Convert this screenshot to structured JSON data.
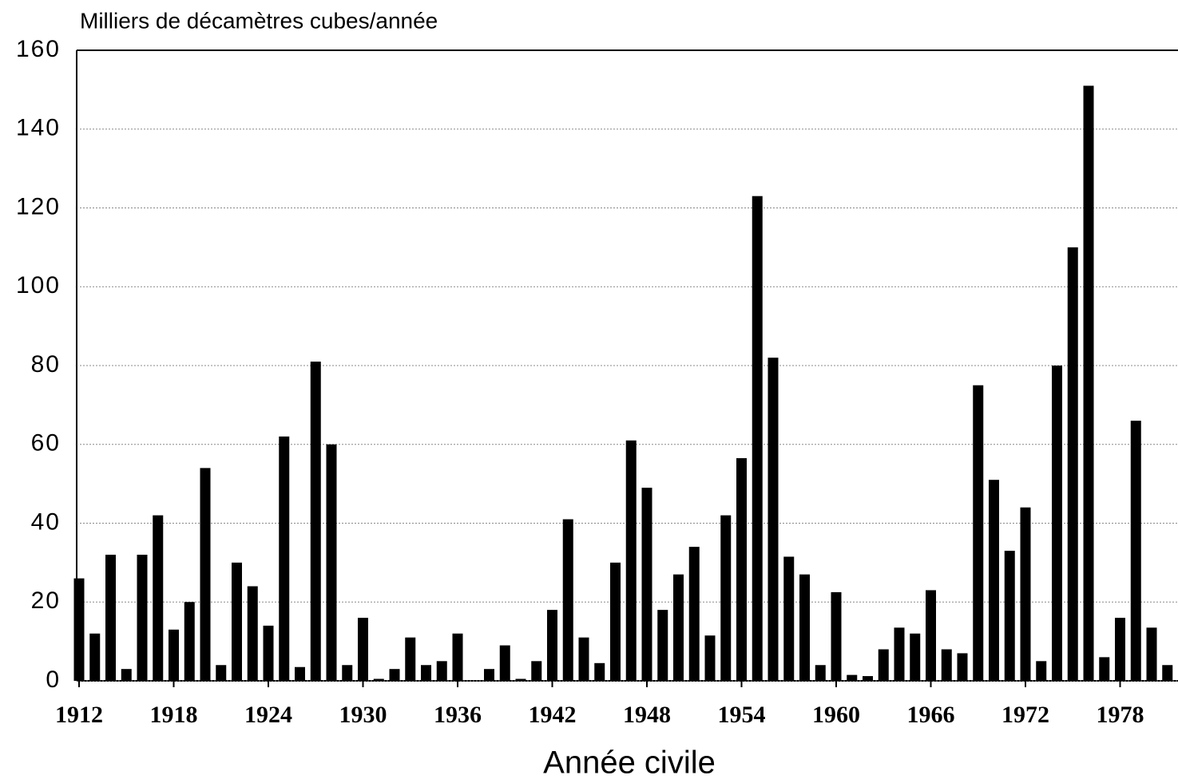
{
  "chart_data": {
    "type": "bar",
    "y_label": "Milliers de décamètres cubes/année",
    "x_label": "Année civile",
    "categories": [
      "1912",
      null,
      null,
      null,
      null,
      null,
      "1918",
      null,
      null,
      null,
      null,
      null,
      "1924",
      null,
      null,
      null,
      null,
      null,
      "1930",
      null,
      null,
      null,
      null,
      null,
      "1936",
      null,
      null,
      null,
      null,
      null,
      "1942",
      null,
      null,
      null,
      null,
      null,
      "1948",
      null,
      null,
      null,
      null,
      null,
      "1954",
      null,
      null,
      null,
      null,
      null,
      "1960",
      null,
      null,
      null,
      null,
      null,
      "1966",
      null,
      null,
      null,
      null,
      null,
      "1972",
      null,
      null,
      null,
      null,
      null,
      "1978",
      null,
      null,
      null
    ],
    "values": [
      26,
      12,
      32,
      3,
      32,
      42,
      13,
      20,
      54,
      4,
      30,
      24,
      14,
      62,
      3.5,
      81,
      60,
      4,
      16,
      0.5,
      3,
      11,
      4,
      5,
      12,
      0,
      3,
      9,
      0.5,
      5,
      18,
      41,
      11,
      4.5,
      30,
      61,
      49,
      18,
      27,
      34,
      11.5,
      42,
      56.5,
      123,
      82,
      31.5,
      27,
      4,
      22.5,
      1.5,
      1.2,
      8,
      13.5,
      12,
      23,
      8,
      7,
      75,
      51,
      33,
      44,
      5,
      80,
      110,
      151,
      6,
      16,
      66,
      13.5,
      4
    ],
    "color": "#000000",
    "ylim": [
      0,
      160
    ],
    "yticks": [
      0,
      20,
      40,
      60,
      80,
      100,
      120,
      140,
      160
    ],
    "grid": true
  }
}
